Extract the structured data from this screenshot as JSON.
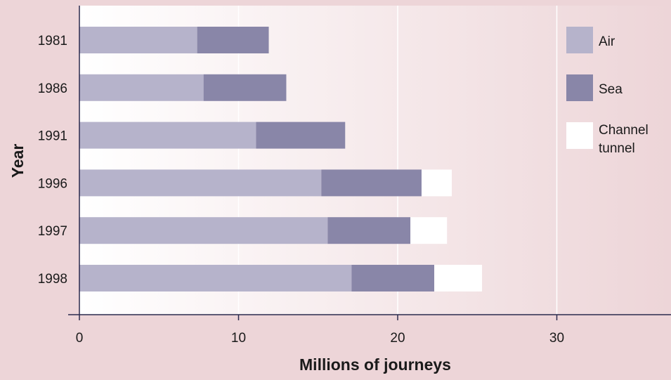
{
  "chart_data": {
    "type": "bar",
    "orientation": "horizontal",
    "stacked": true,
    "categories": [
      "1981",
      "1986",
      "1991",
      "1996",
      "1997",
      "1998"
    ],
    "series": [
      {
        "name": "Air",
        "color": "#b6b3cb",
        "values": [
          7.4,
          7.8,
          11.1,
          15.2,
          15.6,
          17.1
        ]
      },
      {
        "name": "Sea",
        "color": "#8986a8",
        "values": [
          4.5,
          5.2,
          5.6,
          6.3,
          5.2,
          5.2
        ]
      },
      {
        "name": "Channel tunnel",
        "color": "#ffffff",
        "values": [
          0,
          0,
          0,
          1.9,
          2.3,
          3.0
        ]
      }
    ],
    "xlabel": "Millions of journeys",
    "ylabel": "Year",
    "xlim": [
      0,
      37
    ],
    "xticks": [
      "0",
      "10",
      "20",
      "30"
    ],
    "grid": "vertical",
    "legend_position": "right"
  },
  "colors": {
    "background": "#edd5d8",
    "plot_fade_start": "#ffffff",
    "plot_fade_end": "#edd5d8",
    "gridline": "#ffffff",
    "axis": "#2b2b4e",
    "text": "#1a1a1a"
  }
}
